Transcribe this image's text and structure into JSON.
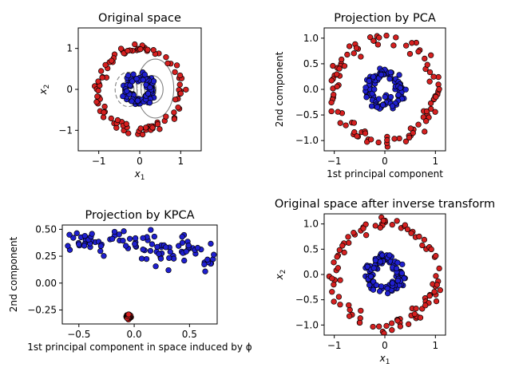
{
  "figure": {
    "width": 640,
    "height": 480
  },
  "colors": {
    "outer": "#d62020",
    "inner": "#1f1fd0",
    "contour": "#808080"
  },
  "chart_data": [
    {
      "id": "original",
      "type": "scatter",
      "title": "Original space",
      "xlabel": "x1",
      "ylabel": "x2",
      "xlim": [
        -1.5,
        1.5
      ],
      "ylim": [
        -1.5,
        1.5
      ],
      "xticks": [
        -1,
        0,
        1
      ],
      "yticks": [
        -1,
        0,
        1
      ],
      "xtick_labels": [
        "−1",
        "0",
        "1"
      ],
      "ytick_labels": [
        "−1",
        "0",
        "1"
      ],
      "grid": false,
      "series": [
        {
          "shape": "ring",
          "cx": 0,
          "cy": 0,
          "r": 1.0,
          "r2": 1.0,
          "jitter": 0.06,
          "n": 100,
          "color": "#d62020"
        },
        {
          "shape": "ring",
          "cx": 0,
          "cy": 0,
          "r": 0.3,
          "r2": 0.3,
          "jitter": 0.06,
          "n": 100,
          "color": "#1f1fd0"
        }
      ],
      "contours": [
        {
          "cx": 0.24,
          "cy": 0.0,
          "rx": 0.06,
          "ry": 0.12,
          "dashed": false
        },
        {
          "cx": 0.26,
          "cy": 0.0,
          "rx": 0.14,
          "ry": 0.22,
          "dashed": false
        },
        {
          "cx": 0.3,
          "cy": 0.0,
          "rx": 0.27,
          "ry": 0.34,
          "dashed": false
        },
        {
          "cx": 0.38,
          "cy": 0.02,
          "rx": 0.45,
          "ry": 0.72,
          "dashed": false
        },
        {
          "cx": -0.22,
          "cy": 0.0,
          "rx": 0.08,
          "ry": 0.14,
          "dashed": true
        },
        {
          "cx": -0.24,
          "cy": 0.0,
          "rx": 0.18,
          "ry": 0.26,
          "dashed": true
        },
        {
          "cx": -0.28,
          "cy": 0.0,
          "rx": 0.32,
          "ry": 0.42,
          "dashed": true
        }
      ]
    },
    {
      "id": "pca",
      "type": "scatter",
      "title": "Projection by PCA",
      "xlabel": "1st principal component",
      "ylabel": "2nd component",
      "xlim": [
        -1.2,
        1.2
      ],
      "ylim": [
        -1.2,
        1.2
      ],
      "xticks": [
        -1,
        0,
        1
      ],
      "yticks": [
        -1.0,
        -0.5,
        0.0,
        0.5,
        1.0
      ],
      "xtick_labels": [
        "−1",
        "0",
        "1"
      ],
      "ytick_labels": [
        "−1.0",
        "−0.5",
        "0.0",
        "0.5",
        "1.0"
      ],
      "grid": false,
      "series": [
        {
          "shape": "ring",
          "cx": 0,
          "cy": 0,
          "r": 1.0,
          "r2": 1.0,
          "jitter": 0.06,
          "n": 100,
          "color": "#d62020"
        },
        {
          "shape": "ring",
          "cx": 0,
          "cy": 0,
          "r": 0.3,
          "r2": 0.3,
          "jitter": 0.06,
          "n": 100,
          "color": "#1f1fd0"
        }
      ]
    },
    {
      "id": "kpca",
      "type": "scatter",
      "title": "Projection by KPCA",
      "xlabel": "1st principal component in space induced by ϕ",
      "ylabel": "2nd component",
      "xlim": [
        -0.65,
        0.75
      ],
      "ylim": [
        -0.38,
        0.54
      ],
      "xticks": [
        -0.5,
        0.0,
        0.5
      ],
      "yticks": [
        -0.25,
        0.0,
        0.25,
        0.5
      ],
      "xtick_labels": [
        "−0.5",
        "0.0",
        "0.5"
      ],
      "ytick_labels": [
        "−0.25",
        "0.00",
        "0.25",
        "0.50"
      ],
      "grid": false,
      "series": [
        {
          "shape": "band",
          "x0": -0.6,
          "x1": 0.72,
          "y0": 0.42,
          "y1": 0.22,
          "spread": 0.07,
          "n": 100,
          "color": "#1f1fd0"
        },
        {
          "shape": "cluster",
          "cx": -0.05,
          "cy": -0.31,
          "spread": 0.01,
          "n": 100,
          "color": "#d62020"
        }
      ]
    },
    {
      "id": "inverse",
      "type": "scatter",
      "title": "Original space after inverse transform",
      "xlabel": "x1",
      "ylabel": "x2",
      "xlim": [
        -1.2,
        1.2
      ],
      "ylim": [
        -1.2,
        1.2
      ],
      "xticks": [
        -1,
        0,
        1
      ],
      "yticks": [
        -1.0,
        -0.5,
        0.0,
        0.5,
        1.0
      ],
      "xtick_labels": [
        "−1",
        "0",
        "1"
      ],
      "ytick_labels": [
        "−1.0",
        "−0.5",
        "0.0",
        "0.5",
        "1.0"
      ],
      "grid": false,
      "series": [
        {
          "shape": "ring",
          "cx": 0,
          "cy": 0,
          "r": 1.0,
          "r2": 1.0,
          "jitter": 0.06,
          "n": 100,
          "color": "#d62020"
        },
        {
          "shape": "ring",
          "cx": 0,
          "cy": 0,
          "r": 0.3,
          "r2": 0.3,
          "jitter": 0.06,
          "n": 100,
          "color": "#1f1fd0"
        }
      ]
    }
  ]
}
